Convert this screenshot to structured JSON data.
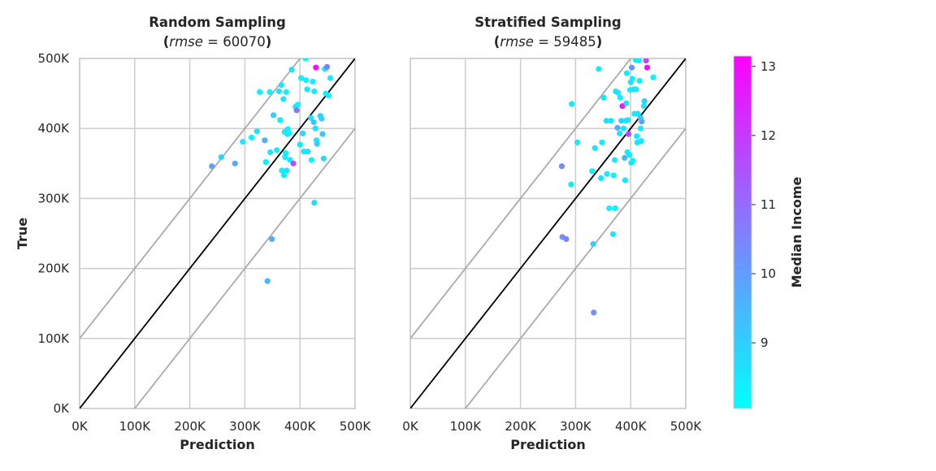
{
  "chart_data": [
    {
      "type": "scatter",
      "title": "Random Sampling",
      "subtitle_open": "(",
      "subtitle_var": "rmse",
      "subtitle_eq": " = 60070",
      "subtitle_close": ")",
      "xlabel": "Prediction",
      "ylabel": "True",
      "xlim": [
        0,
        500000
      ],
      "ylim": [
        0,
        500000
      ],
      "xticks": [
        "0K",
        "100K",
        "200K",
        "300K",
        "400K",
        "500K"
      ],
      "yticks": [
        "0K",
        "100K",
        "200K",
        "300K",
        "400K",
        "500K"
      ],
      "grid": true,
      "reference_lines": [
        {
          "kind": "identity",
          "offset": 0,
          "color": "#000000"
        },
        {
          "kind": "band",
          "offset": 100000,
          "color": "#aaaaaa"
        },
        {
          "kind": "band",
          "offset": -100000,
          "color": "#aaaaaa"
        }
      ],
      "points": [
        [
          240000,
          346000,
          9.9
        ],
        [
          257000,
          359000,
          8.9
        ],
        [
          282000,
          350000,
          9.8
        ],
        [
          296000,
          381000,
          8.4
        ],
        [
          312000,
          387000,
          8.3
        ],
        [
          322000,
          396000,
          8.7
        ],
        [
          327000,
          452000,
          8.4
        ],
        [
          336000,
          383000,
          9.7
        ],
        [
          338000,
          352000,
          8.4
        ],
        [
          345000,
          452000,
          8.4
        ],
        [
          346000,
          366000,
          8.5
        ],
        [
          349000,
          242000,
          9.6
        ],
        [
          352000,
          419000,
          9.0
        ],
        [
          358000,
          369000,
          8.5
        ],
        [
          362000,
          453000,
          8.6
        ],
        [
          364000,
          412000,
          8.4
        ],
        [
          366000,
          462000,
          8.5
        ],
        [
          367000,
          340000,
          8.4
        ],
        [
          370000,
          442000,
          8.6
        ],
        [
          371000,
          333000,
          8.5
        ],
        [
          372000,
          395000,
          8.4
        ],
        [
          373000,
          359000,
          8.4
        ],
        [
          374000,
          365000,
          8.5
        ],
        [
          375000,
          452000,
          8.4
        ],
        [
          376000,
          340000,
          8.6
        ],
        [
          377000,
          392000,
          8.5
        ],
        [
          378000,
          399000,
          8.4
        ],
        [
          380000,
          393000,
          8.3
        ],
        [
          382000,
          355000,
          8.5
        ],
        [
          385000,
          484000,
          8.6
        ],
        [
          388000,
          350000,
          11.6
        ],
        [
          392000,
          431000,
          8.7
        ],
        [
          394000,
          426000,
          10.8
        ],
        [
          396000,
          434000,
          8.3
        ],
        [
          400000,
          377000,
          8.5
        ],
        [
          402000,
          472000,
          8.4
        ],
        [
          405000,
          393000,
          8.8
        ],
        [
          407000,
          367000,
          8.5
        ],
        [
          410000,
          500000,
          8.3
        ],
        [
          411000,
          469000,
          8.4
        ],
        [
          413000,
          456000,
          8.4
        ],
        [
          414000,
          367000,
          8.6
        ],
        [
          420000,
          415000,
          8.6
        ],
        [
          421000,
          355000,
          8.3
        ],
        [
          423000,
          467000,
          8.4
        ],
        [
          425000,
          409000,
          9.2
        ],
        [
          426000,
          453000,
          8.5
        ],
        [
          428000,
          400000,
          8.6
        ],
        [
          429000,
          487000,
          12.8
        ],
        [
          430000,
          383000,
          8.6
        ],
        [
          431000,
          378000,
          9.0
        ],
        [
          437000,
          418000,
          8.9
        ],
        [
          439000,
          414000,
          9.0
        ],
        [
          441000,
          392000,
          9.2
        ],
        [
          443000,
          357000,
          8.8
        ],
        [
          445000,
          485000,
          8.5
        ],
        [
          447000,
          450000,
          8.4
        ],
        [
          449000,
          488000,
          10.6
        ],
        [
          452000,
          447000,
          8.4
        ],
        [
          455000,
          472000,
          8.4
        ],
        [
          426000,
          294000,
          8.8
        ],
        [
          341000,
          182000,
          9.5
        ]
      ]
    },
    {
      "type": "scatter",
      "title": "Stratified Sampling",
      "subtitle_open": "(",
      "subtitle_var": "rmse",
      "subtitle_eq": " = 59485",
      "subtitle_close": ")",
      "xlabel": "Prediction",
      "ylabel": "",
      "xlim": [
        0,
        500000
      ],
      "ylim": [
        0,
        500000
      ],
      "xticks": [
        "0K",
        "100K",
        "200K",
        "300K",
        "400K",
        "500K"
      ],
      "yticks": [],
      "grid": true,
      "reference_lines": [
        {
          "kind": "identity",
          "offset": 0,
          "color": "#000000"
        },
        {
          "kind": "band",
          "offset": 100000,
          "color": "#aaaaaa"
        },
        {
          "kind": "band",
          "offset": -100000,
          "color": "#aaaaaa"
        }
      ],
      "points": [
        [
          275000,
          346000,
          10.4
        ],
        [
          276000,
          245000,
          10.3
        ],
        [
          283000,
          242000,
          10.5
        ],
        [
          292000,
          320000,
          8.5
        ],
        [
          293000,
          435000,
          8.5
        ],
        [
          303000,
          380000,
          8.4
        ],
        [
          330000,
          339000,
          8.4
        ],
        [
          332000,
          235000,
          9.0
        ],
        [
          333000,
          137000,
          10.3
        ],
        [
          335000,
          372000,
          8.5
        ],
        [
          342000,
          485000,
          8.4
        ],
        [
          346000,
          329000,
          8.6
        ],
        [
          348000,
          380000,
          8.4
        ],
        [
          351000,
          444000,
          8.5
        ],
        [
          356000,
          411000,
          8.6
        ],
        [
          357000,
          335000,
          8.4
        ],
        [
          361000,
          286000,
          8.3
        ],
        [
          364000,
          411000,
          8.5
        ],
        [
          368000,
          249000,
          8.6
        ],
        [
          369000,
          333000,
          8.4
        ],
        [
          371000,
          355000,
          8.5
        ],
        [
          372000,
          286000,
          8.3
        ],
        [
          373000,
          453000,
          8.6
        ],
        [
          376000,
          401000,
          9.8
        ],
        [
          377000,
          451000,
          8.6
        ],
        [
          380000,
          393000,
          8.5
        ],
        [
          381000,
          444000,
          8.4
        ],
        [
          383000,
          411000,
          8.9
        ],
        [
          385000,
          432000,
          12.6
        ],
        [
          387000,
          400000,
          8.5
        ],
        [
          389000,
          358000,
          9.6
        ],
        [
          390000,
          326000,
          8.5
        ],
        [
          391000,
          411000,
          8.6
        ],
        [
          392000,
          436000,
          8.7
        ],
        [
          393000,
          479000,
          8.5
        ],
        [
          394000,
          366000,
          8.4
        ],
        [
          396000,
          392000,
          11.5
        ],
        [
          398000,
          362000,
          8.5
        ],
        [
          399000,
          455000,
          8.4
        ],
        [
          400000,
          466000,
          8.6
        ],
        [
          401000,
          351000,
          8.5
        ],
        [
          402000,
          487000,
          10.2
        ],
        [
          403000,
          471000,
          8.4
        ],
        [
          404000,
          354000,
          8.4
        ],
        [
          406000,
          456000,
          8.8
        ],
        [
          407000,
          421000,
          8.6
        ],
        [
          409000,
          498000,
          8.5
        ],
        [
          410000,
          456000,
          8.6
        ],
        [
          411000,
          389000,
          8.4
        ],
        [
          412000,
          380000,
          8.5
        ],
        [
          413000,
          421000,
          8.5
        ],
        [
          415000,
          497000,
          8.4
        ],
        [
          416000,
          468000,
          8.4
        ],
        [
          418000,
          400000,
          8.5
        ],
        [
          419000,
          382000,
          8.5
        ],
        [
          420000,
          410000,
          10.0
        ],
        [
          424000,
          432000,
          8.7
        ],
        [
          425000,
          439000,
          9.0
        ],
        [
          428000,
          497000,
          11.6
        ],
        [
          430000,
          487000,
          12.9
        ],
        [
          441000,
          473000,
          8.4
        ],
        [
          418000,
          415000,
          9.3
        ],
        [
          395000,
          412000,
          8.6
        ]
      ]
    }
  ],
  "colorbar": {
    "label": "Median Income",
    "range": [
      8.05,
      13.15
    ],
    "ticks": [
      "9",
      "10",
      "11",
      "12",
      "13"
    ],
    "colormap": "cool",
    "color_start": "#00ffff",
    "color_end": "#ff00ff"
  }
}
